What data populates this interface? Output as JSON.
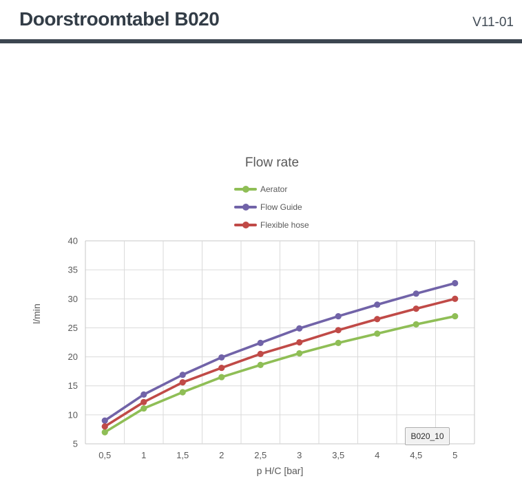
{
  "header": {
    "title": "Doorstroomtabel B020",
    "version": "V11-01"
  },
  "chart_data": {
    "type": "line",
    "title": "Flow rate",
    "xlabel": "p H/C [bar]",
    "ylabel": "l/min",
    "categories": [
      "0,5",
      "1",
      "1,5",
      "2",
      "2,5",
      "3",
      "3,5",
      "4",
      "4,5",
      "5"
    ],
    "x": [
      0.5,
      1,
      1.5,
      2,
      2.5,
      3,
      3.5,
      4,
      4.5,
      5
    ],
    "series": [
      {
        "name": "Aerator",
        "color": "#8fbe56",
        "values": [
          7.0,
          11.1,
          13.9,
          16.5,
          18.6,
          20.6,
          22.4,
          24.0,
          25.6,
          27.0
        ]
      },
      {
        "name": "Flow Guide",
        "color": "#7163a8",
        "values": [
          9.0,
          13.5,
          16.9,
          19.9,
          22.4,
          24.9,
          27.0,
          29.0,
          30.9,
          32.7
        ]
      },
      {
        "name": "Flexible hose",
        "color": "#c04a47",
        "values": [
          8.0,
          12.2,
          15.6,
          18.1,
          20.5,
          22.5,
          24.6,
          26.5,
          28.3,
          30.0
        ]
      }
    ],
    "ylim": [
      5,
      40
    ],
    "ytick_step": 5,
    "grid": true,
    "legend_position": "top-center-stacked",
    "annotation": {
      "label": "B020_10"
    }
  },
  "colors": {
    "gridline": "#dadada",
    "plot_border": "#c7c7c7",
    "axis_text": "#595959"
  }
}
